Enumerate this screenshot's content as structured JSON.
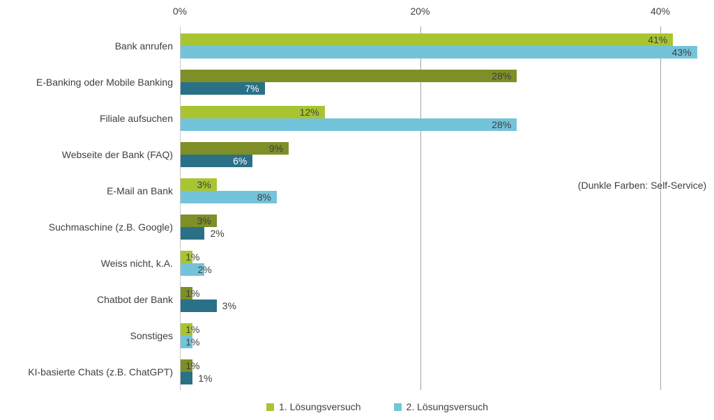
{
  "chart_data": {
    "type": "bar",
    "orientation": "horizontal",
    "title": "",
    "xlabel": "",
    "ylabel": "",
    "x_axis": {
      "position": "top",
      "tick_labels": [
        "0%",
        "20%",
        "40%"
      ],
      "tick_values": [
        0,
        20,
        40
      ],
      "max": 43.7,
      "grid": true
    },
    "categories": [
      "Bank anrufen",
      "E-Banking oder Mobile Banking",
      "Filiale aufsuchen",
      "Webseite der Bank (FAQ)",
      "E-Mail an Bank",
      "Suchmaschine (z.B. Google)",
      "Weiss nicht, k.A.",
      "Chatbot der Bank",
      "Sonstiges",
      "KI-basierte Chats (z.B. ChatGPT)"
    ],
    "self_service_dark": [
      false,
      true,
      false,
      true,
      false,
      true,
      false,
      true,
      false,
      true
    ],
    "series": [
      {
        "name": "1. Lösungsversuch",
        "values": [
          41,
          28,
          12,
          9,
          3,
          3,
          1,
          1,
          1,
          1
        ]
      },
      {
        "name": "2. Lösungsversuch",
        "values": [
          43,
          7,
          28,
          6,
          8,
          2,
          2,
          3,
          1,
          1
        ]
      }
    ],
    "value_suffix": "%",
    "annotation": "(Dunkle Farben: Self-Service)",
    "legend": [
      "1. Lösungsversuch",
      "2. Lösungsversuch"
    ],
    "legend_position": "bottom",
    "colors": {
      "series1_light": "#a8c531",
      "series1_dark": "#7d8f26",
      "series2_light": "#73c3da",
      "series2_dark": "#2a7086",
      "gridline": "#a3a3a3",
      "axis_line": "#c9c9c9",
      "label_dark": "#3f3f3f",
      "label_on_dark": "#ffffff",
      "background": "#ffffff"
    }
  }
}
